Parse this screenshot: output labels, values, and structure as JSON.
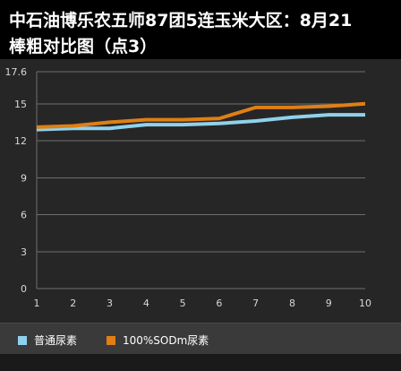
{
  "chart": {
    "title_line1": "中石油博乐农五师87团5连玉米大区：8月21",
    "title_line2": "棒粗对比图（点3）"
  },
  "colors": {
    "background": "#000000",
    "plot_background": "#262626",
    "grid": "#6e6e6e",
    "series_blue": "#8fd1ec",
    "series_orange": "#e07f14"
  },
  "chart_data": {
    "type": "line",
    "x": [
      1,
      2,
      3,
      4,
      5,
      6,
      7,
      8,
      9,
      10
    ],
    "y_ticks": [
      "0",
      "3",
      "6",
      "9",
      "12",
      "15",
      "17.6"
    ],
    "x_ticks": [
      "1",
      "2",
      "3",
      "4",
      "5",
      "6",
      "7",
      "8",
      "9",
      "10"
    ],
    "ylim": [
      0,
      17.6
    ],
    "xlim": [
      1,
      10
    ],
    "grid": true,
    "legend_position": "bottom",
    "series": [
      {
        "name": "普通尿素",
        "color": "#8fd1ec",
        "values": [
          12.9,
          13.0,
          13.0,
          13.3,
          13.3,
          13.4,
          13.6,
          13.9,
          14.1,
          14.1
        ]
      },
      {
        "name": "100%SODm尿素",
        "color": "#e07f14",
        "values": [
          13.1,
          13.2,
          13.5,
          13.7,
          13.7,
          13.8,
          14.7,
          14.7,
          14.8,
          15.0
        ]
      }
    ]
  }
}
